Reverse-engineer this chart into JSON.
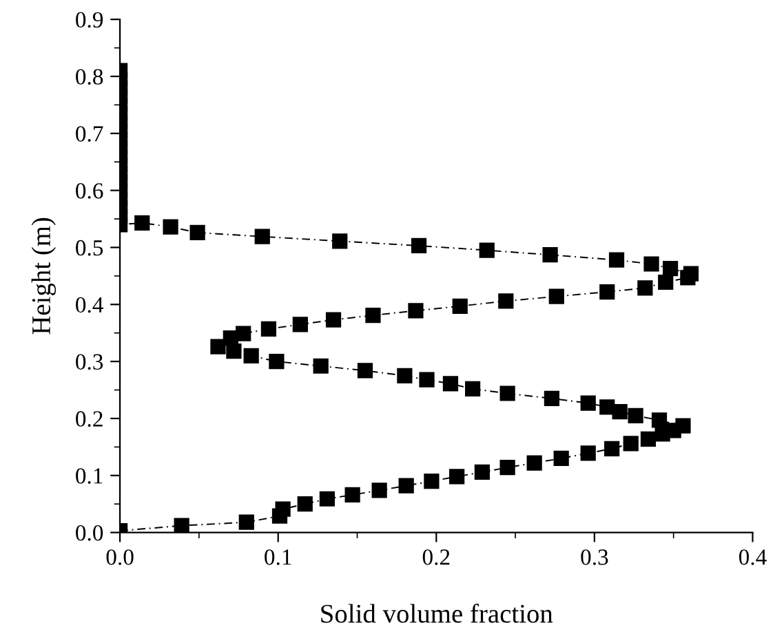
{
  "chart_data": {
    "type": "line",
    "xlabel": "Solid volume fraction",
    "ylabel": "Height (m)",
    "xlim": [
      0.0,
      0.4
    ],
    "xticks": [
      {
        "value": 0,
        "label": "0.0"
      },
      0.1,
      0.2,
      0.3,
      0.4
    ],
    "ylim": [
      0.0,
      0.9
    ],
    "yticks": [
      {
        "value": 0,
        "label": "0.0"
      },
      0.1,
      0.2,
      0.3,
      0.4,
      0.5,
      0.6,
      0.7,
      0.8,
      0.9
    ],
    "grid": false,
    "legend": false,
    "marker": "square",
    "line_style": "dashed",
    "series": [
      {
        "color": "#000000",
        "x": [
          0,
          0.039,
          0.08,
          0.101,
          0.103,
          0.117,
          0.131,
          0.147,
          0.164,
          0.181,
          0.197,
          0.213,
          0.229,
          0.245,
          0.262,
          0.279,
          0.296,
          0.311,
          0.323,
          0.334,
          0.343,
          0.35,
          0.356,
          0.341,
          0.326,
          0.316,
          0.308,
          0.296,
          0.273,
          0.245,
          0.223,
          0.209,
          0.194,
          0.18,
          0.155,
          0.127,
          0.099,
          0.083,
          0.072,
          0.062,
          0.07,
          0.078,
          0.094,
          0.114,
          0.135,
          0.16,
          0.187,
          0.215,
          0.244,
          0.276,
          0.308,
          0.332,
          0.345,
          0.359,
          0.361,
          0.348,
          0.336,
          0.314,
          0.272,
          0.232,
          0.189,
          0.139,
          0.09,
          0.049,
          0.032,
          0.014,
          0,
          0,
          0,
          0,
          0,
          0,
          0,
          0,
          0,
          0,
          0,
          0,
          0,
          0,
          0,
          0,
          0,
          0,
          0
        ],
        "values": [
          0.003,
          0.012,
          0.018,
          0.029,
          0.041,
          0.05,
          0.059,
          0.066,
          0.074,
          0.082,
          0.09,
          0.098,
          0.106,
          0.114,
          0.122,
          0.13,
          0.139,
          0.147,
          0.156,
          0.164,
          0.173,
          0.179,
          0.187,
          0.197,
          0.205,
          0.212,
          0.22,
          0.227,
          0.235,
          0.244,
          0.252,
          0.261,
          0.268,
          0.275,
          0.284,
          0.292,
          0.3,
          0.31,
          0.318,
          0.326,
          0.341,
          0.349,
          0.357,
          0.365,
          0.373,
          0.381,
          0.389,
          0.397,
          0.406,
          0.414,
          0.422,
          0.429,
          0.439,
          0.447,
          0.454,
          0.463,
          0.471,
          0.478,
          0.487,
          0.495,
          0.503,
          0.511,
          0.519,
          0.526,
          0.536,
          0.543,
          0.54,
          0.555,
          0.57,
          0.585,
          0.6,
          0.615,
          0.63,
          0.645,
          0.66,
          0.675,
          0.69,
          0.705,
          0.72,
          0.735,
          0.75,
          0.765,
          0.78,
          0.795,
          0.81
        ]
      }
    ]
  }
}
